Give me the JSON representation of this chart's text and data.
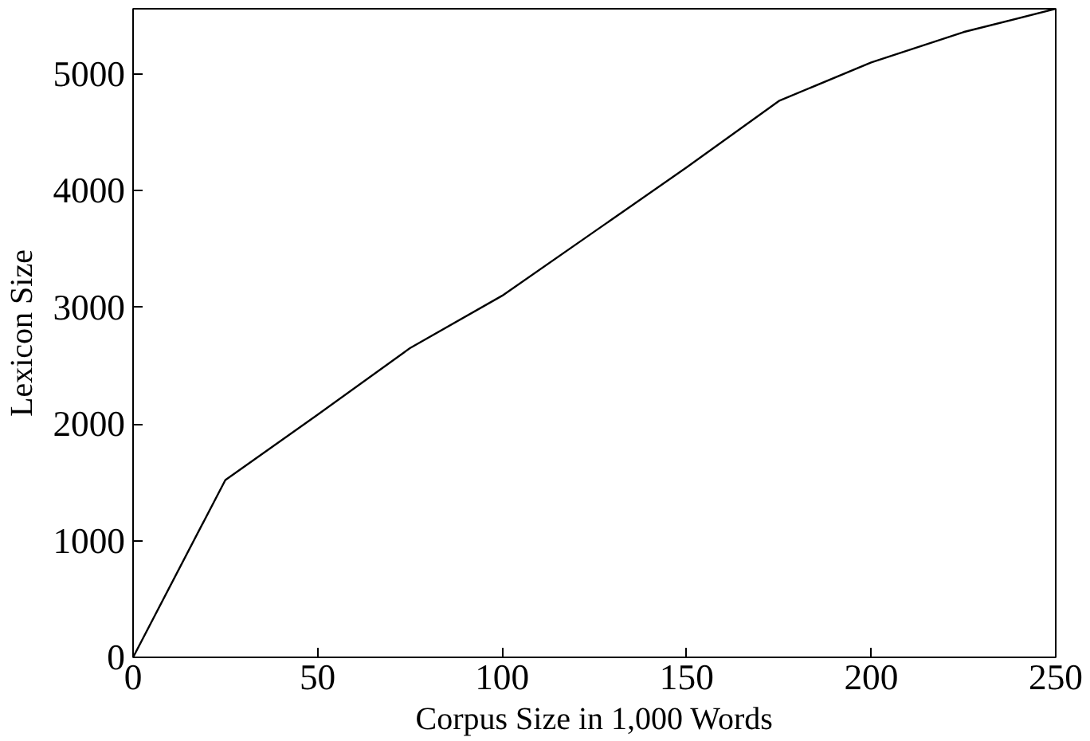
{
  "chart_data": {
    "type": "line",
    "xlabel": "Corpus Size in 1,000 Words",
    "ylabel": "Lexicon Size",
    "x": [
      0,
      25,
      50,
      75,
      100,
      125,
      150,
      175,
      200,
      225,
      250
    ],
    "series": [
      {
        "color": "#000000",
        "values": [
          0,
          1520,
          2080,
          2650,
          3100,
          3650,
          4200,
          4770,
          5100,
          5360,
          5560
        ]
      }
    ],
    "xlim": [
      0,
      250
    ],
    "ylim": [
      0,
      5560
    ],
    "xticks": [
      0,
      50,
      100,
      150,
      200,
      250
    ],
    "yticks": [
      0,
      1000,
      2000,
      3000,
      4000,
      5000
    ],
    "grid": false,
    "marker": "none",
    "line_style": "solid"
  }
}
